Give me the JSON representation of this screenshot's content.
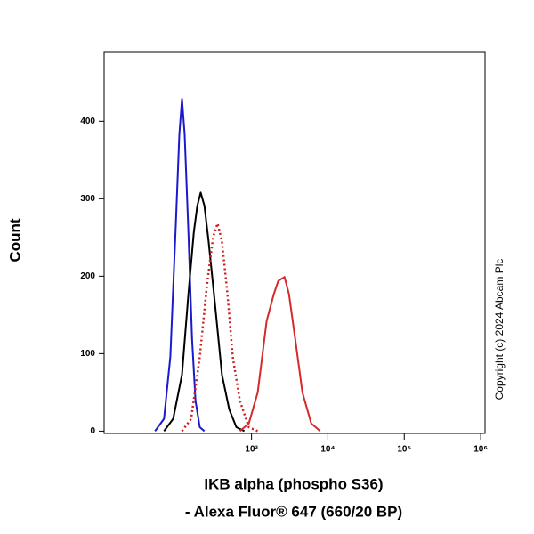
{
  "chart_data": {
    "type": "line",
    "y_label": "Count",
    "x_label": [
      "IKB alpha (phospho S36)",
      "- Alexa Fluor® 647 (660/20 BP)"
    ],
    "annotation": "Copyright (c) 2024 Abcam Plc",
    "x_scale": "asinh",
    "xlim": [
      -200,
      1140000
    ],
    "ylim": [
      -3,
      490
    ],
    "xticks": [
      {
        "value": 1000,
        "label": "10³"
      },
      {
        "value": 10000,
        "label": "10⁴"
      },
      {
        "value": 100000,
        "label": "10⁵"
      },
      {
        "value": 1000000,
        "label": "10⁶"
      }
    ],
    "yticks": [
      0,
      100,
      200,
      300,
      400
    ],
    "series": [
      {
        "color": "#1a1acc",
        "style": "solid",
        "x": [
          9,
          37,
          58,
          78,
          92,
          103,
          115,
          133,
          152,
          172,
          199,
          232
        ],
        "values": [
          0,
          16,
          96,
          268,
          383,
          429,
          383,
          257,
          119,
          39,
          5,
          0
        ]
      },
      {
        "color": "#000000",
        "style": "solid",
        "x": [
          37,
          68,
          103,
          133,
          162,
          183,
          205,
          232,
          266,
          325,
          405,
          508,
          631,
          805
        ],
        "values": [
          0,
          16,
          73,
          177,
          257,
          291,
          308,
          291,
          245,
          165,
          73,
          28,
          5,
          0
        ]
      },
      {
        "color": "#cc2222",
        "style": "dotted",
        "x": [
          103,
          147,
          199,
          252,
          307,
          354,
          405,
          480,
          565,
          703,
          922,
          1206
        ],
        "values": [
          0,
          16,
          96,
          188,
          251,
          268,
          245,
          177,
          96,
          39,
          5,
          0
        ]
      },
      {
        "color": "#d42a2a",
        "style": "solid",
        "x": [
          703,
          922,
          1206,
          1580,
          1960,
          2245,
          2707,
          3095,
          3740,
          4638,
          6064,
          7934
        ],
        "values": [
          0,
          10,
          50,
          142,
          177,
          194,
          199,
          177,
          119,
          50,
          10,
          0
        ]
      }
    ]
  }
}
